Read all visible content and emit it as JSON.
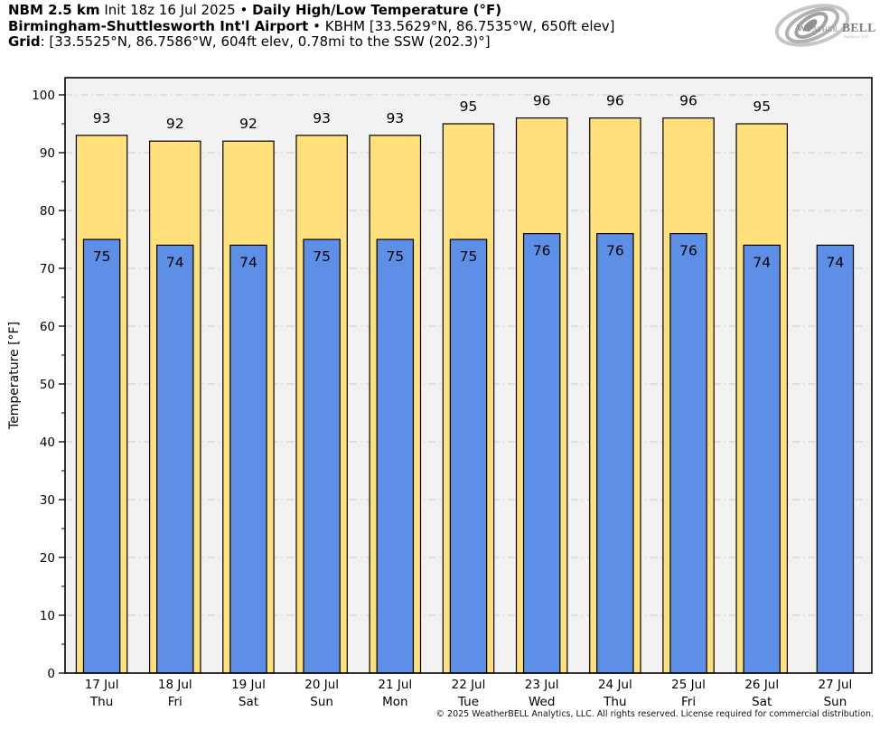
{
  "header": {
    "line1": {
      "model": "NBM 2.5 km",
      "init": " Init 18z 16 Jul 2025 ",
      "sep": "• ",
      "title": "Daily High/Low Temperature (°F)"
    },
    "line2": {
      "station": "Birmingham-Shuttlesworth Int'l Airport",
      "sep": " • ",
      "details": "KBHM [33.5629°N, 86.7535°W, 650ft elev]"
    },
    "line3": {
      "label": "Grid",
      "details": ": [33.5525°N, 86.7586°W, 604ft elev, 0.78mi to the SSW (202.3)°]"
    }
  },
  "logo": {
    "text_weather": "Weather",
    "text_bell": "BELL",
    "subtext": "Analytics LLC"
  },
  "chart_data": {
    "type": "bar",
    "title": "Daily High/Low Temperature (°F)",
    "ylabel": "Temperature [°F]",
    "ylim": [
      0,
      103
    ],
    "yticks": [
      0,
      10,
      20,
      30,
      40,
      50,
      60,
      70,
      80,
      90,
      100
    ],
    "minor_tick_step": 5,
    "grid": true,
    "legend_position": "none",
    "categories": [
      "17 Jul",
      "18 Jul",
      "19 Jul",
      "20 Jul",
      "21 Jul",
      "22 Jul",
      "23 Jul",
      "24 Jul",
      "25 Jul",
      "26 Jul",
      "27 Jul"
    ],
    "weekdays": [
      "Thu",
      "Fri",
      "Sat",
      "Sun",
      "Mon",
      "Tue",
      "Wed",
      "Thu",
      "Fri",
      "Sat",
      "Sun"
    ],
    "series": [
      {
        "name": "High",
        "color": "#FFE07A",
        "border": "#000000",
        "values": [
          93,
          92,
          92,
          93,
          93,
          95,
          96,
          96,
          96,
          95,
          null
        ]
      },
      {
        "name": "Low",
        "color": "#5D8FE6",
        "border": "#000000",
        "values": [
          75,
          74,
          74,
          75,
          75,
          75,
          76,
          76,
          76,
          74,
          74
        ]
      }
    ],
    "plot_bg": "#F2F2F2",
    "grid_color": "#C9C9C9"
  },
  "footer": {
    "copyright": "© 2025 WeatherBELL Analytics, LLC. All rights reserved. License required for commercial distribution."
  }
}
